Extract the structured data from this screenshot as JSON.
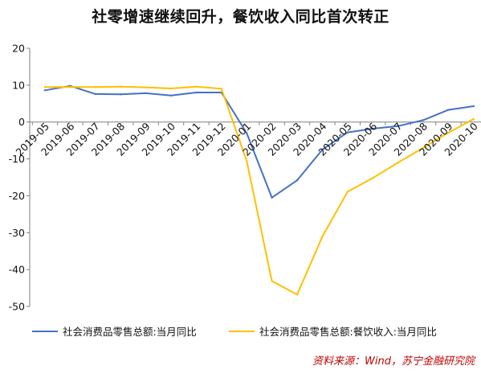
{
  "chart_data": {
    "type": "line",
    "title": "社零增速继续回升，餐饮收入同比首次转正",
    "xlabel": "",
    "ylabel": "",
    "categories": [
      "2019-05",
      "2019-06",
      "2019-07",
      "2019-08",
      "2019-09",
      "2019-10",
      "2019-11",
      "2019-12",
      "2020-01",
      "2020-02",
      "2020-03",
      "2020-04",
      "2020-05",
      "2020-06",
      "2020-07",
      "2020-08",
      "2020-09",
      "2020-10"
    ],
    "ylim": [
      -50,
      20
    ],
    "yticks": [
      "20",
      "10",
      "0",
      "-10",
      "-20",
      "-30",
      "-40",
      "-50"
    ],
    "grid": false,
    "legend_position": "bottom",
    "series": [
      {
        "name": "社会消费品零售总额:当月同比",
        "color": "#4472c4",
        "values": [
          8.6,
          9.8,
          7.6,
          7.5,
          7.8,
          7.2,
          8.0,
          8.0,
          -3.0,
          -20.5,
          -15.8,
          -7.5,
          -2.8,
          -1.8,
          -1.1,
          0.5,
          3.3,
          4.3
        ]
      },
      {
        "name": "社会消费品零售总额:餐饮收入:当月同比",
        "color": "#ffc000",
        "values": [
          9.5,
          9.5,
          9.5,
          9.6,
          9.4,
          9.1,
          9.6,
          9.0,
          -10.5,
          -43.1,
          -46.8,
          -31.1,
          -18.9,
          -15.2,
          -11.0,
          -7.0,
          -2.9,
          0.8
        ]
      }
    ]
  },
  "source": "资料来源：Wind，苏宁金融研究院"
}
